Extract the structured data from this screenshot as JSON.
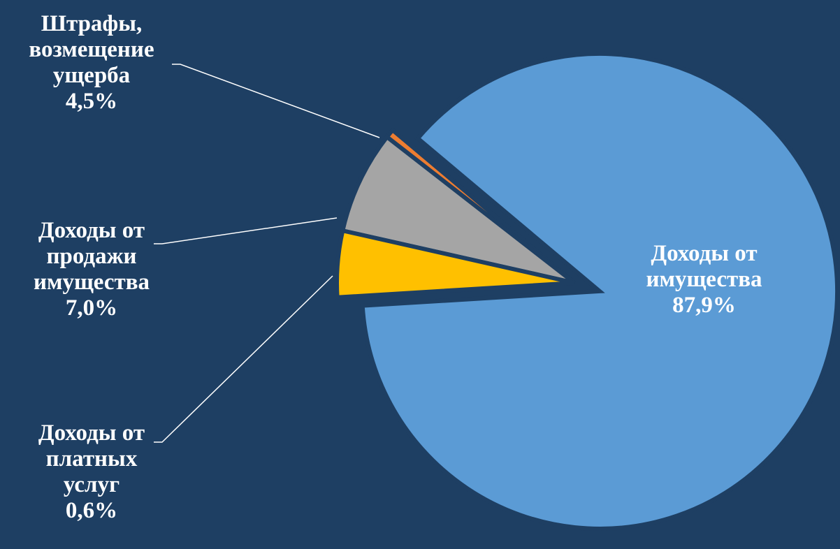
{
  "chart_data": {
    "type": "pie",
    "start_angle_deg": 183.5,
    "direction": "counterclockwise",
    "slices": [
      {
        "label_lines": [
          "Доходы от",
          "имущества"
        ],
        "value": 87.9,
        "value_text": "87,9%",
        "color": "#5b9bd5",
        "exploded": true,
        "label_inside": true
      },
      {
        "label_lines": [
          "Доходы от",
          "платных",
          "услуг"
        ],
        "value": 0.6,
        "value_text": "0,6%",
        "color": "#ed7d31",
        "exploded": false,
        "label_inside": false
      },
      {
        "label_lines": [
          "Доходы от",
          "продажи",
          "имущества"
        ],
        "value": 7.0,
        "value_text": "7,0%",
        "color": "#a5a5a5",
        "exploded": false,
        "label_inside": false
      },
      {
        "label_lines": [
          "Штрафы,",
          "возмещение",
          "ущерба"
        ],
        "value": 4.5,
        "value_text": "4,5%",
        "color": "#ffc000",
        "exploded": false,
        "label_inside": false
      }
    ]
  },
  "colors": {
    "background": "#1e3f63",
    "label_text": "#ffffff",
    "leader_line": "#ffffff"
  }
}
